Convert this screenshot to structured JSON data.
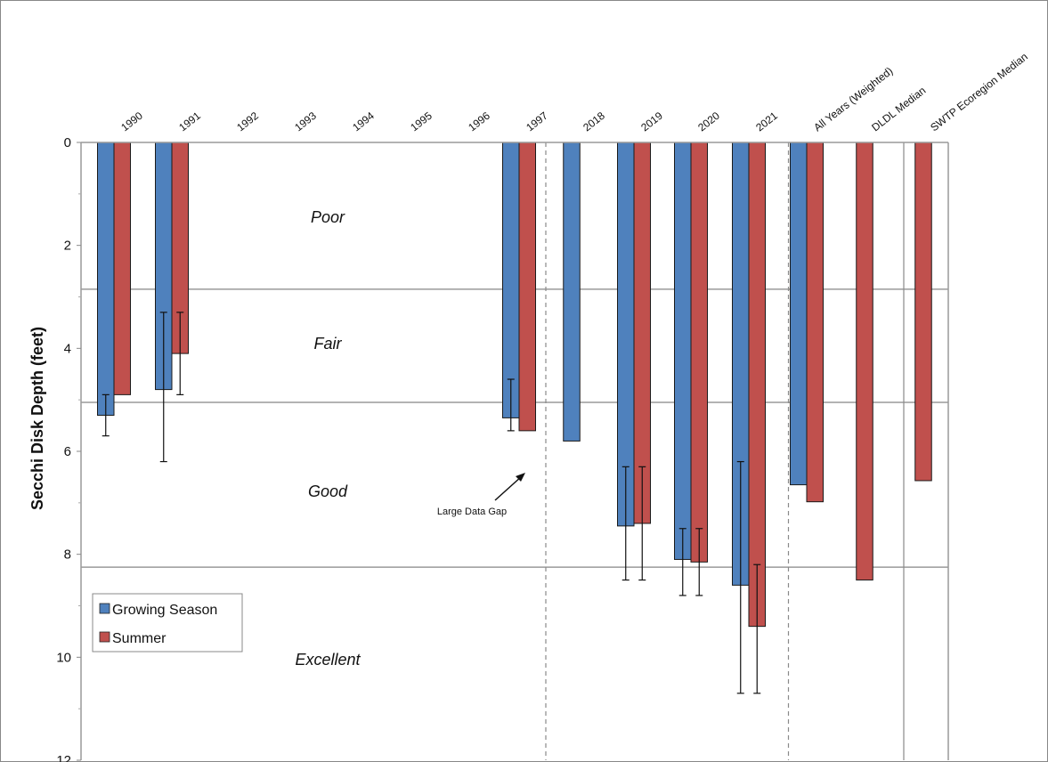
{
  "chart_data": {
    "type": "bar",
    "ylabel": "Secchi Disk Depth (feet)",
    "ylim": [
      0,
      12
    ],
    "y_inverted": true,
    "y_ticks": [
      0,
      2,
      4,
      6,
      8,
      10,
      12
    ],
    "categories": [
      "1990",
      "1991",
      "1992",
      "1993",
      "1994",
      "1995",
      "1996",
      "1997",
      "2018",
      "2019",
      "2020",
      "2021",
      "All Years (Weighted)",
      "DLDL Median",
      "SWTP Ecoregion Median"
    ],
    "series": [
      {
        "name": "Growing Season",
        "color": "#4F81BD",
        "values": [
          5.3,
          4.8,
          null,
          null,
          null,
          null,
          null,
          5.35,
          5.8,
          7.45,
          8.1,
          8.6,
          6.65,
          null,
          null
        ],
        "error_low": [
          4.9,
          3.3,
          null,
          null,
          null,
          null,
          null,
          4.6,
          null,
          6.3,
          7.5,
          6.2,
          null,
          null,
          null
        ],
        "error_high": [
          5.7,
          6.2,
          null,
          null,
          null,
          null,
          null,
          5.6,
          null,
          8.5,
          8.8,
          10.7,
          null,
          null,
          null
        ]
      },
      {
        "name": "Summer",
        "color": "#C0504D",
        "values": [
          4.9,
          4.1,
          null,
          null,
          null,
          null,
          null,
          5.6,
          null,
          7.4,
          8.15,
          9.4,
          6.98,
          8.5,
          6.57
        ],
        "error_low": [
          null,
          3.3,
          null,
          null,
          null,
          null,
          null,
          null,
          null,
          6.3,
          7.5,
          8.2,
          null,
          null,
          null
        ],
        "error_high": [
          null,
          4.9,
          null,
          null,
          null,
          null,
          null,
          null,
          null,
          8.5,
          8.8,
          10.7,
          null,
          null,
          null
        ]
      }
    ],
    "zones": [
      {
        "label": "Poor",
        "boundary": 2.85
      },
      {
        "label": "Fair",
        "boundary": 5.05
      },
      {
        "label": "Good",
        "boundary": 8.25
      },
      {
        "label": "Excellent",
        "boundary": null
      }
    ],
    "annotation": "Large Data Gap",
    "legend": [
      "Growing Season",
      "Summer"
    ],
    "legend_position": "bottom-left",
    "grid": false
  }
}
